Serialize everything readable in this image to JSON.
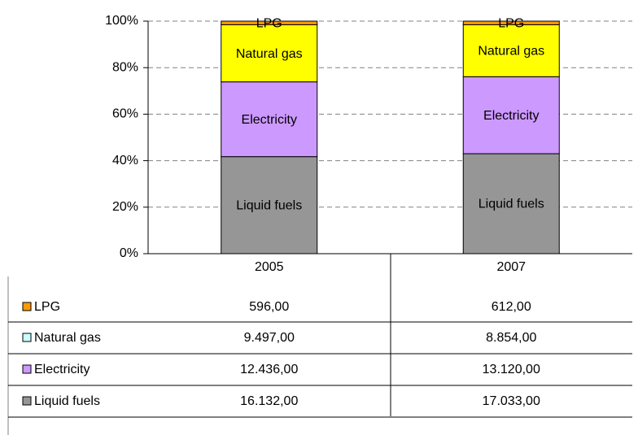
{
  "chart_data": {
    "type": "bar",
    "stacking": "percent",
    "categories": [
      "2005",
      "2007"
    ],
    "series": [
      {
        "name": "Liquid fuels",
        "color": "#969696",
        "legend_color": "#969696",
        "values": [
          16132,
          17033
        ],
        "value_labels": [
          "16.132,00",
          "17.033,00"
        ]
      },
      {
        "name": "Electricity",
        "color": "#cc99ff",
        "legend_color": "#cc99ff",
        "values": [
          12436,
          13120
        ],
        "value_labels": [
          "12.436,00",
          "13.120,00"
        ]
      },
      {
        "name": "Natural gas",
        "color": "#ffff00",
        "legend_color": "#ccffff",
        "values": [
          9497,
          8854
        ],
        "value_labels": [
          "9.497,00",
          "8.854,00"
        ]
      },
      {
        "name": "LPG",
        "color": "#ff9900",
        "legend_color": "#ff9900",
        "values": [
          596,
          612
        ],
        "value_labels": [
          "596,00",
          "612,00"
        ]
      }
    ],
    "ylim": [
      0,
      100
    ],
    "yticks": [
      {
        "value": 0,
        "label": "0%"
      },
      {
        "value": 20,
        "label": "20%"
      },
      {
        "value": 40,
        "label": "40%"
      },
      {
        "value": 60,
        "label": "60%"
      },
      {
        "value": 80,
        "label": "80%"
      },
      {
        "value": 100,
        "label": "100%"
      }
    ],
    "grid": true
  }
}
